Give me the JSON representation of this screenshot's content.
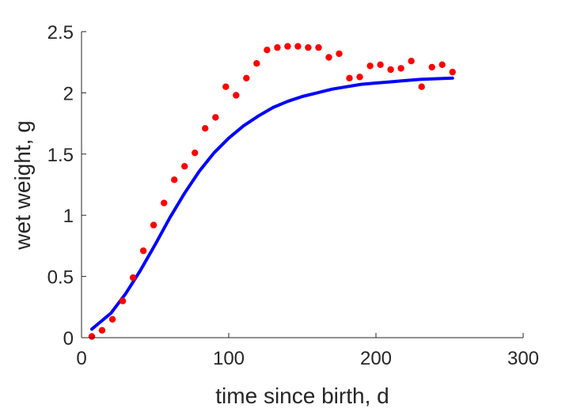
{
  "chart_data": {
    "type": "scatter",
    "title": "",
    "xlabel": "time since birth, d",
    "ylabel": "wet weight, g",
    "xlim": [
      0,
      300
    ],
    "ylim": [
      0,
      2.5
    ],
    "xticks": [
      0,
      100,
      200,
      300
    ],
    "xtick_labels": [
      "0",
      "100",
      "200",
      "300"
    ],
    "yticks": [
      0,
      0.5,
      1,
      1.5,
      2,
      2.5
    ],
    "ytick_labels": [
      "0",
      "0.5",
      "1",
      "1.5",
      "2",
      "2.5"
    ],
    "grid": false,
    "legend": "none",
    "series": [
      {
        "kind": "scatter",
        "color": "#ff0000",
        "x": [
          7,
          14,
          21,
          28,
          35,
          42,
          49,
          56,
          63,
          70,
          77,
          84,
          91,
          98,
          105,
          112,
          119,
          126,
          133,
          140,
          147,
          154,
          161,
          168,
          175,
          182,
          189,
          196,
          203,
          210,
          217,
          224,
          231,
          238,
          245,
          252
        ],
        "y": [
          0.01,
          0.06,
          0.15,
          0.3,
          0.49,
          0.71,
          0.92,
          1.1,
          1.29,
          1.4,
          1.51,
          1.71,
          1.8,
          2.05,
          1.98,
          2.12,
          2.24,
          2.35,
          2.37,
          2.38,
          2.38,
          2.37,
          2.37,
          2.29,
          2.32,
          2.12,
          2.13,
          2.22,
          2.23,
          2.19,
          2.2,
          2.26,
          2.05,
          2.21,
          2.23,
          2.17
        ]
      },
      {
        "kind": "line",
        "color": "#0000ff",
        "x": [
          7,
          20,
          30,
          40,
          50,
          60,
          70,
          80,
          90,
          100,
          110,
          120,
          130,
          140,
          150,
          160,
          170,
          180,
          190,
          200,
          210,
          220,
          230,
          240,
          252
        ],
        "y": [
          0.07,
          0.2,
          0.36,
          0.55,
          0.76,
          0.98,
          1.18,
          1.36,
          1.51,
          1.63,
          1.73,
          1.81,
          1.88,
          1.93,
          1.97,
          2.0,
          2.03,
          2.05,
          2.07,
          2.08,
          2.09,
          2.1,
          2.11,
          2.115,
          2.12
        ]
      }
    ]
  }
}
